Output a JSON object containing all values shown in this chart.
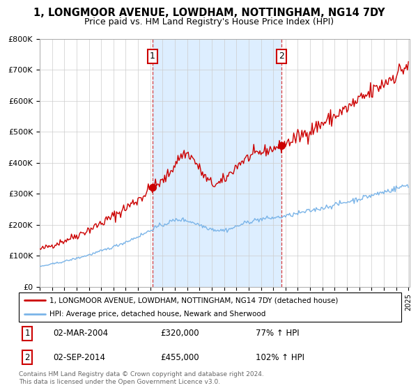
{
  "title": "1, LONGMOOR AVENUE, LOWDHAM, NOTTINGHAM, NG14 7DY",
  "subtitle": "Price paid vs. HM Land Registry's House Price Index (HPI)",
  "title_fontsize": 10.5,
  "subtitle_fontsize": 9,
  "ylim": [
    0,
    800000
  ],
  "yticks": [
    0,
    100000,
    200000,
    300000,
    400000,
    500000,
    600000,
    700000,
    800000
  ],
  "ytick_labels": [
    "£0",
    "£100K",
    "£200K",
    "£300K",
    "£400K",
    "£500K",
    "£600K",
    "£700K",
    "£800K"
  ],
  "start_year": 1995,
  "end_year": 2025,
  "transaction1_date": 2004.17,
  "transaction1_price": 320000,
  "transaction2_date": 2014.67,
  "transaction2_price": 455000,
  "hpi_color": "#7ab4e8",
  "price_color": "#cc0000",
  "background_color": "#ffffff",
  "shaded_region_color": "#ddeeff",
  "grid_color": "#cccccc",
  "legend_entry1": "1, LONGMOOR AVENUE, LOWDHAM, NOTTINGHAM, NG14 7DY (detached house)",
  "legend_entry2": "HPI: Average price, detached house, Newark and Sherwood",
  "annotation1_date": "02-MAR-2004",
  "annotation1_price": "£320,000",
  "annotation1_hpi": "77% ↑ HPI",
  "annotation2_date": "02-SEP-2014",
  "annotation2_price": "£455,000",
  "annotation2_hpi": "102% ↑ HPI",
  "footer": "Contains HM Land Registry data © Crown copyright and database right 2024.\nThis data is licensed under the Open Government Licence v3.0."
}
